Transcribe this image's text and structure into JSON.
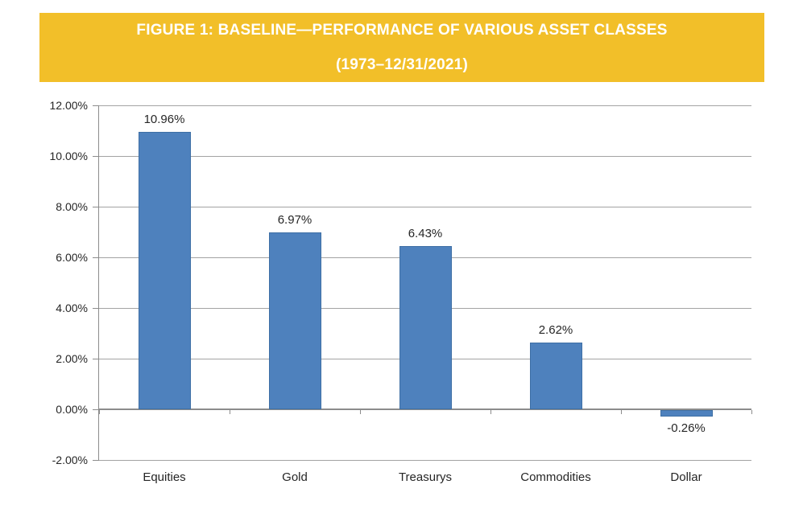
{
  "banner": {
    "title_line1": "FIGURE 1: BASELINE—PERFORMANCE OF VARIOUS ASSET CLASSES",
    "title_line2": "(1973–12/31/2021)",
    "background_color": "#F2BF29",
    "text_color": "#FFFFFF"
  },
  "chart_data": {
    "type": "bar",
    "title": "FIGURE 1: BASELINE—PERFORMANCE OF VARIOUS ASSET CLASSES (1973–12/31/2021)",
    "categories": [
      "Equities",
      "Gold",
      "Treasurys",
      "Commodities",
      "Dollar"
    ],
    "values": [
      10.96,
      6.97,
      6.43,
      2.62,
      -0.26
    ],
    "value_labels": [
      "10.96%",
      "6.97%",
      "6.43%",
      "2.62%",
      "-0.26%"
    ],
    "xlabel": "",
    "ylabel": "",
    "ylim": [
      -2,
      12
    ],
    "y_tick_step": 2,
    "y_tick_labels": [
      "12.00%",
      "10.00%",
      "8.00%",
      "6.00%",
      "4.00%",
      "2.00%",
      "0.00%",
      "-2.00%"
    ],
    "grid": true,
    "legend": false,
    "bar_color": "#4E81BD",
    "bar_border_color": "#3E6FA5",
    "gridline_color": "#A3A3A3",
    "axis_color": "#8C8C8C",
    "label_color": "#262626"
  }
}
